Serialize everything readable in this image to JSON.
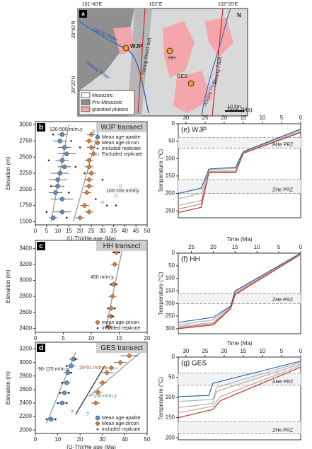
{
  "map": {
    "panel": "a",
    "lon_labels": [
      "101°40'E",
      "102°E",
      "102°20'E"
    ],
    "lat_labels": [
      "28°40'N",
      "28°20'N"
    ],
    "north": "N",
    "rivers": [
      "Yalong River",
      "Yalong River",
      "Anning River"
    ],
    "sites": [
      "WJP",
      "HH",
      "GES"
    ],
    "belt": "Yalong thrust belt",
    "fault": "Anning Fault",
    "scale": "10 km",
    "legend": [
      "Mesozoic",
      "Pro-Mesozoic",
      "granitoid plutons"
    ]
  },
  "chart_data": [
    {
      "type": "scatter",
      "panel": "b",
      "title": "WJP transect",
      "xlabel": "(U-Th)/He age (Ma)",
      "ylabel": "Elevation (m)",
      "xlim": [
        0,
        50
      ],
      "ylim": [
        1450,
        3050
      ],
      "xticks": [
        0,
        5,
        10,
        15,
        20,
        25,
        30,
        35,
        40,
        45,
        50
      ],
      "yticks": [
        1500,
        1750,
        2000,
        2250,
        2500,
        2750,
        3000
      ],
      "legend": "upper right",
      "series": [
        {
          "name": "Mean age-apatite",
          "marker": "circle",
          "color": "#5b8fc9",
          "x": [
            12,
            11,
            13,
            14,
            12,
            13,
            11,
            10,
            10,
            9,
            12,
            12,
            8
          ],
          "y": [
            2850,
            2750,
            2650,
            2550,
            2450,
            2350,
            2250,
            2150,
            2050,
            1950,
            1850,
            1650,
            1560
          ],
          "xerr": [
            2,
            3,
            3,
            4,
            3,
            3,
            4,
            4,
            3,
            3,
            5,
            4,
            2
          ]
        },
        {
          "name": "Mean age-zircon",
          "marker": "diamond",
          "color": "#e07b2a",
          "x": [
            25,
            24,
            25,
            26,
            24,
            24,
            25,
            24,
            24,
            23,
            22,
            24,
            20
          ],
          "y": [
            2850,
            2750,
            2650,
            2550,
            2450,
            2350,
            2250,
            2150,
            2050,
            1950,
            1750,
            1650,
            1560
          ],
          "xerr": [
            2,
            2,
            2,
            2,
            2,
            2,
            2,
            2,
            2,
            2,
            2,
            2,
            2
          ]
        },
        {
          "name": "Included replicate",
          "marker": "dot",
          "color": "#222222",
          "x": [
            8,
            16,
            20,
            28,
            6,
            18,
            22,
            30,
            7,
            15,
            27,
            32,
            36,
            5,
            14
          ],
          "y": [
            2850,
            2750,
            2650,
            2550,
            2450,
            2350,
            2250,
            2150,
            2050,
            1950,
            1850,
            1750,
            1750,
            1650,
            1560
          ]
        },
        {
          "name": "Excluded replicate",
          "marker": "open",
          "color": "#888888",
          "x": [
            26,
            38,
            45,
            36,
            30
          ],
          "y": [
            2900,
            2050,
            2000,
            1900,
            1800
          ]
        }
      ],
      "trend_lines": [
        {
          "color": "#999999",
          "x": [
            7,
            15
          ],
          "y": [
            1500,
            3000
          ]
        },
        {
          "color": "#999999",
          "x": [
            17,
            29
          ],
          "y": [
            1500,
            3000
          ]
        }
      ],
      "annotations": [
        {
          "text": "120-500 m/m.y",
          "color": "#222222"
        },
        {
          "text": "100-200 m/m.y",
          "color": "#222222"
        }
      ]
    },
    {
      "type": "scatter",
      "panel": "c",
      "title": "HH transect",
      "xlabel": "(U-Th)/He age (Ma)",
      "ylabel": "Elevation (m)",
      "xlim": [
        0,
        20
      ],
      "ylim": [
        2350,
        3500
      ],
      "xticks": [
        0,
        5,
        10,
        15,
        20
      ],
      "yticks": [
        2400,
        2600,
        2800,
        3000,
        3200,
        3400
      ],
      "legend": "lower right",
      "series": [
        {
          "name": "mean age-zircon",
          "marker": "diamond",
          "color": "#e07b2a",
          "x": [
            14.5,
            14.2,
            14.0,
            13.8,
            13.6,
            13.5,
            13.2
          ],
          "y": [
            3350,
            3200,
            2950,
            2800,
            2650,
            2550,
            2420
          ],
          "xerr": [
            0.7,
            0.7,
            0.7,
            0.7,
            0.7,
            0.7,
            0.7
          ]
        },
        {
          "name": "included replicate",
          "marker": "dot",
          "color": "#222222",
          "x": [
            14,
            15,
            13.5,
            14.5,
            13,
            14.2,
            13.8,
            12.8
          ],
          "y": [
            3350,
            3350,
            2950,
            2950,
            2650,
            2650,
            2550,
            2420
          ]
        }
      ],
      "trend_lines": [
        {
          "color": "#999999",
          "x": [
            12.6,
            15.6
          ],
          "y": [
            2400,
            3400
          ]
        }
      ],
      "annotations": [
        {
          "text": "450 m/m.y.",
          "color": "#222222"
        }
      ]
    },
    {
      "type": "scatter",
      "panel": "d",
      "title": "GES transect",
      "xlabel": "(U-Th)/He age (Ma)",
      "ylabel": "Elevation (m)",
      "xlim": [
        0,
        50
      ],
      "ylim": [
        1950,
        3300
      ],
      "xticks": [
        0,
        10,
        20,
        30,
        40,
        50
      ],
      "yticks": [
        2000,
        2200,
        2400,
        2600,
        2800,
        3000,
        3200
      ],
      "legend": "lower right",
      "series": [
        {
          "name": "Mean age-apatite",
          "marker": "circle",
          "color": "#5b8fc9",
          "x": [
            7,
            12,
            13,
            14,
            14.5,
            16,
            17
          ],
          "y": [
            2160,
            2400,
            2550,
            2700,
            2850,
            2950,
            3050
          ],
          "xerr": [
            1.5,
            2,
            2,
            2,
            2,
            2,
            2
          ]
        },
        {
          "name": "Mean age-zircon",
          "marker": "diamond",
          "color": "#e07b2a",
          "x": [
            27,
            28,
            30,
            32,
            34,
            38,
            42
          ],
          "y": [
            2400,
            2560,
            2700,
            2850,
            2920,
            3000,
            3100
          ],
          "xerr": [
            2,
            2,
            2,
            3,
            3,
            3,
            4
          ]
        },
        {
          "name": "included replicate",
          "marker": "dot",
          "color": "#222222",
          "x": [
            5,
            9,
            10,
            14,
            11,
            15,
            12,
            16,
            14,
            18
          ],
          "y": [
            2160,
            2160,
            2400,
            2400,
            2550,
            2550,
            2700,
            2850,
            2950,
            3050
          ]
        }
      ],
      "trend_lines": [
        {
          "color": "#999999",
          "x": [
            5,
            18
          ],
          "y": [
            2100,
            3150
          ]
        },
        {
          "color": "#333333",
          "x": [
            18,
            31
          ],
          "y": [
            2230,
            2950
          ]
        },
        {
          "color": "#999999",
          "x": [
            24,
            47
          ],
          "y": [
            2500,
            3150
          ]
        }
      ],
      "annotations": [
        {
          "text": "90-125 m/m.y",
          "color": "#222222"
        },
        {
          "text": "20-51 m/m.y",
          "color": "#c0392b"
        },
        {
          "text": "~150 m/m.y",
          "color": "#2e8b57"
        },
        {
          "text": "?",
          "color": "#c0392b"
        },
        {
          "text": "?",
          "color": "#2e8b57"
        }
      ]
    },
    {
      "type": "line",
      "panel": "(e) WJP",
      "xlabel": "Time (Ma)",
      "ylabel": "Temperature (°C)",
      "xlim": [
        32,
        0
      ],
      "ylim": [
        0,
        270
      ],
      "xticks": [
        30,
        25,
        20,
        15,
        10,
        5,
        0
      ],
      "yticks": [
        0,
        50,
        100,
        150,
        200,
        250
      ],
      "prz": [
        {
          "label": "AHe PRZ",
          "range": [
            40,
            70
          ]
        },
        {
          "label": "ZHe PRZ",
          "range": [
            160,
            200
          ]
        }
      ],
      "series": [
        {
          "color": "#b0b0b0",
          "x": [
            32,
            26,
            24,
            17,
            15,
            0
          ],
          "y": [
            215,
            200,
            133,
            128,
            81,
            18
          ]
        },
        {
          "color": "#b0b0b0",
          "x": [
            32,
            26,
            24,
            17,
            15,
            0
          ],
          "y": [
            235,
            220,
            137,
            135,
            83,
            22
          ]
        },
        {
          "color": "#d08080",
          "x": [
            32,
            26,
            24,
            17,
            15,
            0
          ],
          "y": [
            245,
            230,
            139,
            138,
            84,
            24
          ]
        },
        {
          "color": "#c0392b",
          "x": [
            32,
            26,
            24,
            17,
            15,
            0
          ],
          "y": [
            255,
            240,
            140,
            140,
            85,
            25
          ]
        },
        {
          "color": "#2c5fa8",
          "x": [
            32,
            26,
            24,
            17,
            15,
            0
          ],
          "y": [
            200,
            185,
            130,
            125,
            80,
            15
          ]
        }
      ]
    },
    {
      "type": "line",
      "panel": "(f) HH",
      "xlabel": "Time (Ma)",
      "ylabel": "Temperature (°C)",
      "xlim": [
        28,
        0
      ],
      "ylim": [
        0,
        320
      ],
      "xticks": [
        25,
        20,
        15,
        10,
        5,
        0
      ],
      "yticks": [
        0,
        50,
        100,
        150,
        200,
        250,
        300
      ],
      "prz": [
        {
          "label": "ZHe PRZ",
          "range": [
            160,
            200
          ]
        }
      ],
      "series": [
        {
          "color": "#b0b0b0",
          "x": [
            28,
            20,
            16,
            15,
            0
          ],
          "y": [
            285,
            265,
            213,
            152,
            2
          ]
        },
        {
          "color": "#b0b0b0",
          "x": [
            28,
            20,
            16,
            15,
            0
          ],
          "y": [
            292,
            275,
            217,
            158,
            3
          ]
        },
        {
          "color": "#d08080",
          "x": [
            28,
            20,
            16,
            15,
            0
          ],
          "y": [
            296,
            280,
            218,
            162,
            4
          ]
        },
        {
          "color": "#c0392b",
          "x": [
            28,
            20,
            16,
            15,
            0
          ],
          "y": [
            300,
            285,
            220,
            165,
            5
          ]
        },
        {
          "color": "#2c5fa8",
          "x": [
            28,
            20,
            16,
            15,
            0
          ],
          "y": [
            275,
            255,
            210,
            150,
            0
          ]
        }
      ]
    },
    {
      "type": "line",
      "panel": "(g) GES",
      "xlabel": "Time (Ma)",
      "ylabel": "Temperature (°C)",
      "xlim": [
        32,
        0
      ],
      "ylim": [
        0,
        205
      ],
      "xticks": [
        30,
        25,
        20,
        15,
        10,
        5,
        0
      ],
      "yticks": [
        0,
        50,
        100,
        150,
        200
      ],
      "prz": [
        {
          "label": "AHe PRZ",
          "range": [
            40,
            70
          ]
        },
        {
          "label": "ZHe PRZ",
          "range": [
            160,
            190
          ]
        }
      ],
      "series": [
        {
          "color": "#b0b0b0",
          "x": [
            32,
            23,
            22,
            0
          ],
          "y": [
            110,
            105,
            75,
            13
          ]
        },
        {
          "color": "#b0b0b0",
          "x": [
            32,
            23,
            22,
            0
          ],
          "y": [
            125,
            115,
            85,
            17
          ]
        },
        {
          "color": "#b0b0b0",
          "x": [
            32,
            23,
            21,
            0
          ],
          "y": [
            138,
            122,
            98,
            21
          ]
        },
        {
          "color": "#c0392b",
          "x": [
            32,
            23,
            21,
            0
          ],
          "y": [
            150,
            130,
            108,
            25
          ]
        },
        {
          "color": "#2c5fa8",
          "x": [
            32,
            24,
            23,
            0
          ],
          "y": [
            98,
            95,
            65,
            10
          ]
        }
      ]
    }
  ]
}
